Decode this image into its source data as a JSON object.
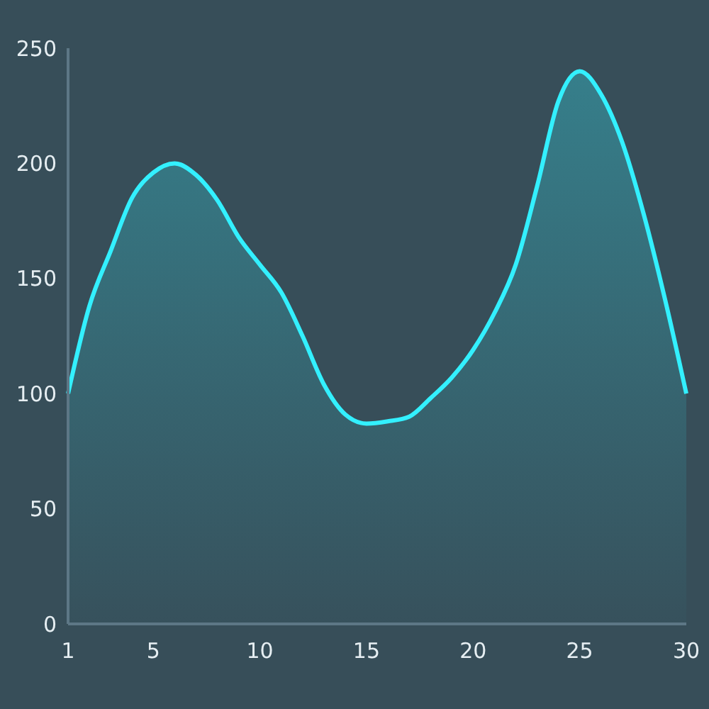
{
  "chart_data": {
    "type": "area",
    "x": [
      1,
      2,
      3,
      4,
      5,
      6,
      7,
      8,
      9,
      10,
      11,
      12,
      13,
      14,
      15,
      16,
      17,
      18,
      19,
      20,
      21,
      22,
      23,
      24,
      25,
      26,
      27,
      28,
      29,
      30
    ],
    "series": [
      {
        "color": "#33f0ff",
        "values": [
          100,
          138,
          162,
          185,
          196,
          200,
          195,
          184,
          168,
          156,
          144,
          125,
          104,
          91,
          87,
          88,
          90,
          98,
          107,
          119,
          135,
          156,
          190,
          227,
          240,
          230,
          209,
          178,
          141,
          100
        ]
      }
    ],
    "xlim": [
      1,
      30
    ],
    "xticks": [
      1,
      5,
      10,
      15,
      20,
      25,
      30
    ],
    "ylim": [
      0,
      250
    ],
    "yticks": [
      0,
      50,
      100,
      150,
      200,
      250
    ],
    "grid": false,
    "marker": "none"
  }
}
